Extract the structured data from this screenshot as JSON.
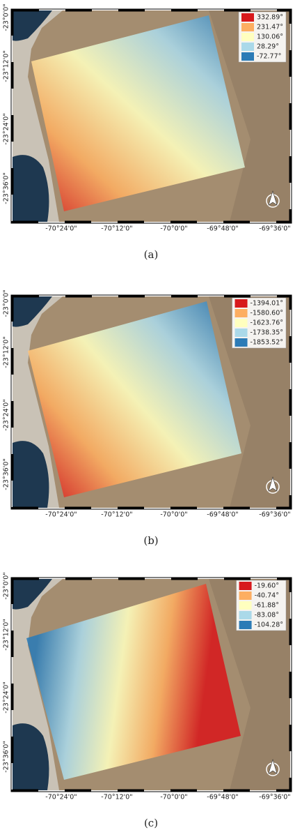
{
  "panels": [
    {
      "caption": "(a)",
      "legend": [
        {
          "label": "332.89°",
          "color": "#d7191c"
        },
        {
          "label": "231.47°",
          "color": "#fdae61"
        },
        {
          "label": "130.06°",
          "color": "#ffffbf"
        },
        {
          "label": "28.29°",
          "color": "#abd9e9"
        },
        {
          "label": "-72.77°",
          "color": "#2c7bb6"
        }
      ],
      "x_ticks": [
        "-70°24'0\"",
        "-70°12'0\"",
        "-70°0'0\"",
        "-69°48'0\"",
        "-69°36'0\""
      ],
      "y_ticks": [
        "-23°0'0\"",
        "-23°12'0\"",
        "-23°24'0\"",
        "-23°36'0\""
      ]
    },
    {
      "caption": "(b)",
      "legend": [
        {
          "label": "-1394.01°",
          "color": "#d7191c"
        },
        {
          "label": "-1580.60°",
          "color": "#fdae61"
        },
        {
          "label": "-1623.76°",
          "color": "#ffffbf"
        },
        {
          "label": "-1738.35°",
          "color": "#abd9e9"
        },
        {
          "label": "-1853.52°",
          "color": "#2c7bb6"
        }
      ],
      "x_ticks": [
        "-70°24'0\"",
        "-70°12'0\"",
        "-70°0'0\"",
        "-69°48'0\"",
        "-69°36'0\""
      ],
      "y_ticks": [
        "-23°0'0\"",
        "-23°12'0\"",
        "-23°24'0\"",
        "-23°36'0\""
      ]
    },
    {
      "caption": "(c)",
      "legend": [
        {
          "label": "-19.60°",
          "color": "#d7191c"
        },
        {
          "label": "-40.74°",
          "color": "#fdae61"
        },
        {
          "label": "-61.88°",
          "color": "#ffffbf"
        },
        {
          "label": "-83.08°",
          "color": "#abd9e9"
        },
        {
          "label": "-104.28°",
          "color": "#2c7bb6"
        }
      ],
      "x_ticks": [
        "-70°24'0\"",
        "-70°12'0\"",
        "-70°0'0\"",
        "-69°48'0\"",
        "-69°36'0\""
      ],
      "y_ticks": [
        "-23°0'0\"",
        "-23°12'0\"",
        "-23°24'0\"",
        "-23°36'0\""
      ]
    }
  ]
}
